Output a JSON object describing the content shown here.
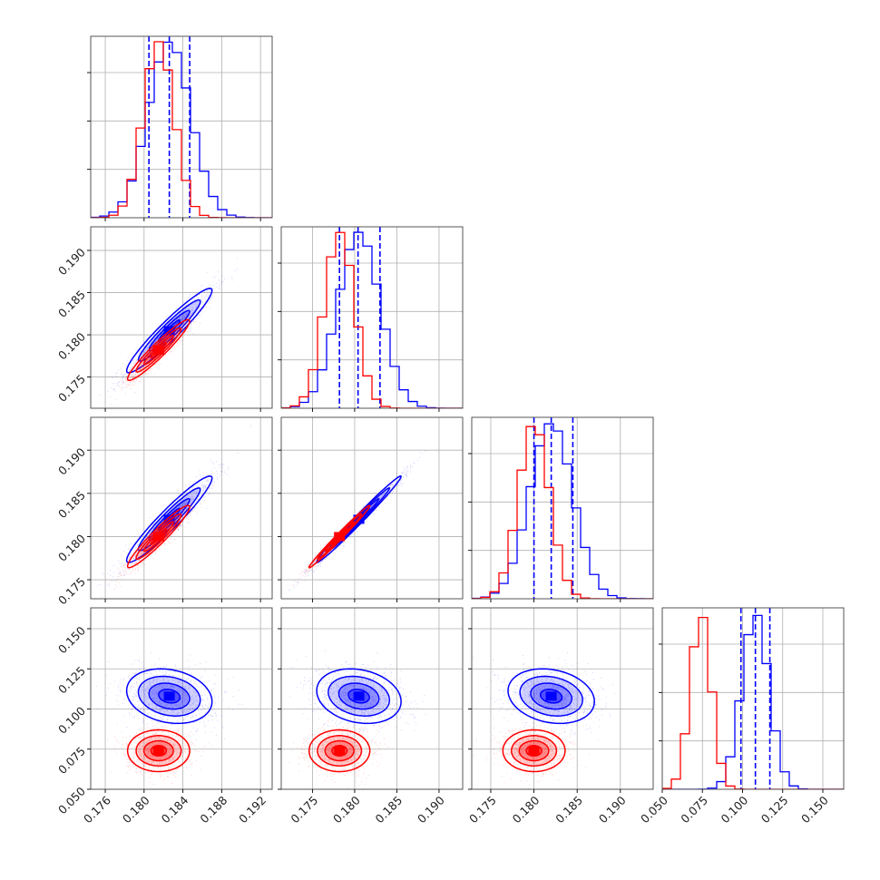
{
  "colors": {
    "blue": "#0000ff",
    "red": "#ff0000",
    "grid": "#b0b0b0",
    "frame": "#000000"
  },
  "chart_data": {
    "type": "corner",
    "title": "",
    "n_params": 4,
    "grid": true,
    "params": [
      {
        "range": [
          0.1745,
          0.1932
        ],
        "ticks": [
          0.176,
          0.18,
          0.184,
          0.188,
          0.192
        ],
        "tick_labels": [
          "0.176",
          "0.180",
          "0.184",
          "0.188",
          "0.192"
        ]
      },
      {
        "range": [
          0.1713,
          0.1928
        ],
        "ticks": [
          0.175,
          0.18,
          0.185,
          0.19
        ],
        "tick_labels": [
          "0.175",
          "0.180",
          "0.185",
          "0.190"
        ]
      },
      {
        "range": [
          0.1728,
          0.1938
        ],
        "ticks": [
          0.175,
          0.18,
          0.185,
          0.19
        ],
        "tick_labels": [
          "0.175",
          "0.180",
          "0.185",
          "0.190"
        ]
      },
      {
        "range": [
          0.05,
          0.163
        ],
        "ticks": [
          0.05,
          0.075,
          0.1,
          0.125,
          0.15
        ],
        "tick_labels": [
          "0.050",
          "0.075",
          "0.100",
          "0.125",
          "0.150"
        ]
      }
    ],
    "series": [
      {
        "color": "blue",
        "means": [
          0.1826,
          0.1805,
          0.182,
          0.108
        ],
        "sigmas": [
          0.0022,
          0.0025,
          0.0025,
          0.0085
        ],
        "quantiles": [
          [
            0.1805,
            0.1826,
            0.1847
          ],
          [
            0.1782,
            0.1804,
            0.183
          ],
          [
            0.18,
            0.182,
            0.1845
          ],
          [
            0.099,
            0.108,
            0.117
          ]
        ],
        "correlations": {
          "1-0": 0.95,
          "2-0": 0.95,
          "2-1": 0.99,
          "3-0": -0.2,
          "3-1": -0.2,
          "3-2": -0.2
        }
      },
      {
        "color": "red",
        "means": [
          0.1815,
          0.1782,
          0.18,
          0.074
        ],
        "sigmas": [
          0.0016,
          0.0018,
          0.0018,
          0.0065
        ],
        "quantiles": null,
        "correlations": {
          "1-0": 0.95,
          "2-0": 0.95,
          "2-1": 0.99,
          "3-0": 0.0,
          "3-1": 0.0,
          "3-2": 0.0
        }
      }
    ]
  }
}
